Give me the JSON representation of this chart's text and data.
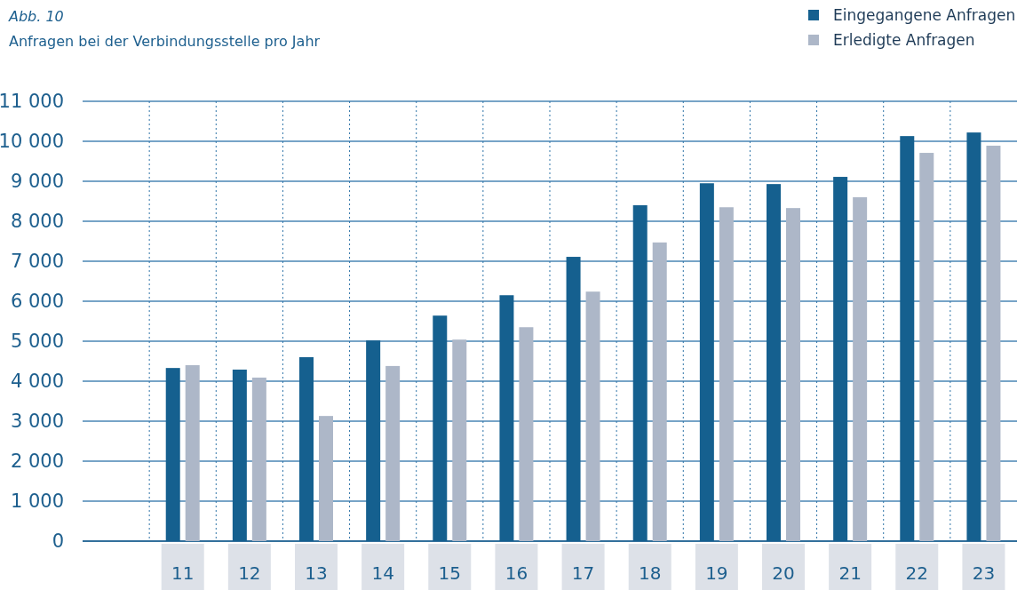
{
  "chart_data": {
    "type": "bar",
    "title": "Abb. 10",
    "subtitle": "Anfragen bei der Verbindungsstelle pro Jahr",
    "categories": [
      null,
      "11",
      "12",
      "13",
      "14",
      "15",
      "16",
      "17",
      "18",
      "19",
      "20",
      "21",
      "22",
      "23"
    ],
    "series": [
      {
        "name": "Eingegangene Anfragen",
        "color": "#15608f",
        "values": [
          null,
          4330,
          4290,
          4600,
          5020,
          5640,
          6150,
          7110,
          8400,
          8950,
          8930,
          9110,
          10130,
          10220
        ]
      },
      {
        "name": "Erledigte Anfragen",
        "color": "#adb7c8",
        "values": [
          null,
          4400,
          4090,
          3130,
          4380,
          5040,
          5350,
          6240,
          7470,
          8350,
          8330,
          8600,
          9710,
          9890
        ]
      }
    ],
    "ylim": [
      0,
      11000
    ],
    "yticks": [
      0,
      {
        "value": 1000,
        "label": "1 000"
      },
      {
        "value": 2000,
        "label": "2 000"
      },
      {
        "value": 3000,
        "label": "3 000"
      },
      {
        "value": 4000,
        "label": "4 000"
      },
      {
        "value": 5000,
        "label": "5 000"
      },
      {
        "value": 6000,
        "label": "6 000"
      },
      {
        "value": 7000,
        "label": "7 000"
      },
      {
        "value": 8000,
        "label": "8 000"
      },
      {
        "value": 9000,
        "label": "9 000"
      },
      {
        "value": 10000,
        "label": "10 000"
      },
      {
        "value": 11000,
        "label": "11 000"
      }
    ],
    "grid": true,
    "legend": "top right"
  }
}
